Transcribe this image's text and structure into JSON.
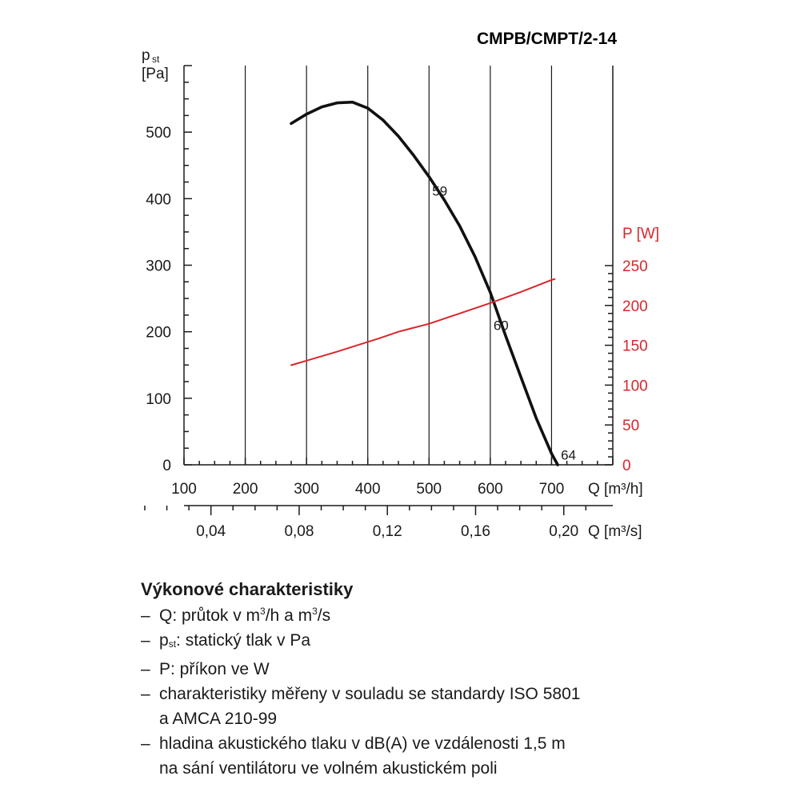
{
  "chart_data": {
    "type": "line",
    "title": "CMPB/CMPT/2-14",
    "y_left": {
      "label_main": "p",
      "label_sub": "st",
      "label_unit": "[Pa]",
      "ylim": [
        0,
        600
      ],
      "ticks": [
        "0",
        "100",
        "200",
        "300",
        "400",
        "500"
      ]
    },
    "y_right": {
      "label": "P [W]",
      "ylim": [
        0,
        250
      ],
      "ticks": [
        "0",
        "50",
        "100",
        "150",
        "200",
        "250"
      ],
      "color": "#d9262b"
    },
    "x_m3h": {
      "label": "Q [m³/h]",
      "xlim": [
        100,
        800
      ],
      "ticks": [
        "100",
        "200",
        "300",
        "400",
        "500",
        "600",
        "700"
      ]
    },
    "x_m3s": {
      "label": "Q [m³/s]",
      "ticks": [
        {
          "value": 0.04,
          "text": "0,04"
        },
        {
          "value": 0.08,
          "text": "0,08"
        },
        {
          "value": 0.12,
          "text": "0,12"
        },
        {
          "value": 0.16,
          "text": "0,16"
        },
        {
          "value": 0.2,
          "text": "0,20"
        }
      ]
    },
    "series": [
      {
        "axis": "left",
        "color": "#111111",
        "x": [
          275,
          300,
          325,
          350,
          375,
          400,
          425,
          450,
          475,
          500,
          525,
          550,
          575,
          600,
          625,
          650,
          675,
          700,
          710
        ],
        "y": [
          513,
          527,
          538,
          544,
          545,
          536,
          518,
          494,
          465,
          433,
          398,
          359,
          313,
          259,
          194,
          132,
          70,
          17,
          0
        ]
      },
      {
        "axis": "right",
        "color": "#d9262b",
        "x": [
          275,
          350,
          420,
          450,
          500,
          550,
          600,
          650,
          700,
          705
        ],
        "y": [
          125,
          142,
          159,
          167,
          177,
          190,
          203,
          217,
          232,
          233
        ]
      }
    ],
    "annotations": [
      {
        "text": "59",
        "x": 500,
        "y": 412
      },
      {
        "text": "60",
        "x": 600,
        "y": 210
      },
      {
        "text": "64",
        "x": 710,
        "y": 15
      }
    ],
    "grid": "vertical"
  },
  "legend": {
    "heading": "Výkonové charakteristiky",
    "items": {
      "q": {
        "a": "Q: průtok v m",
        "sup1": "3",
        "b": "/h a m",
        "sup2": "3",
        "c": "/s"
      },
      "pst": {
        "a": "p",
        "sub": "st",
        "b": ": statický tlak v Pa"
      },
      "p": "P: příkon ve W",
      "iso1": "charakteristiky měřeny v souladu se standardy ISO 5801",
      "iso2": "a AMCA 210-99",
      "noise1": "hladina akustického tlaku v dB(A) ve vzdálenosti 1,5 m",
      "noise2": "na sání ventilátoru ve volném akustickém poli"
    }
  }
}
